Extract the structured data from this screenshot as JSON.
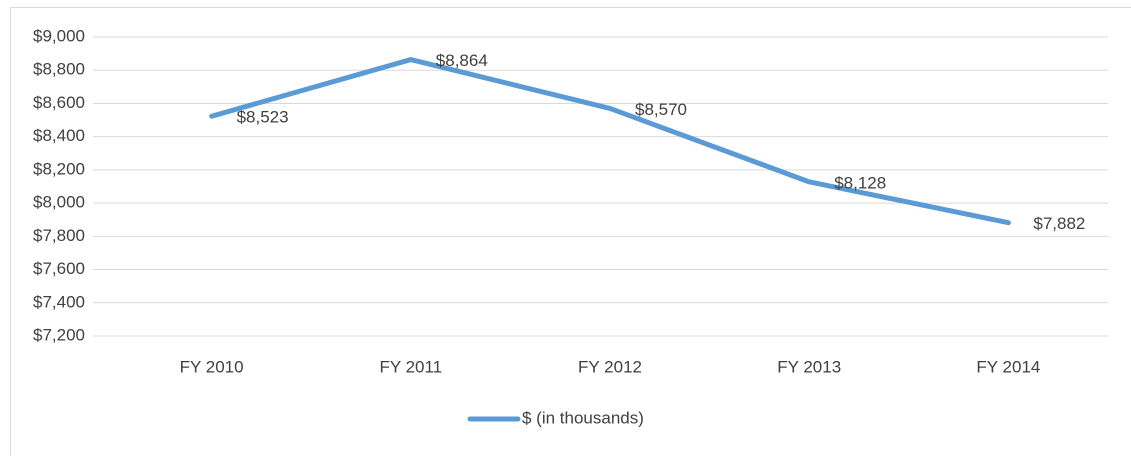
{
  "chart_data": {
    "type": "line",
    "categories": [
      "FY 2010",
      "FY 2011",
      "FY 2012",
      "FY 2013",
      "FY 2014"
    ],
    "series": [
      {
        "name": "$ (in thousands)",
        "color": "#5b9bd5",
        "values": [
          8523,
          8864,
          8570,
          8128,
          7882
        ],
        "value_labels": [
          "$8,523",
          "$8,864",
          "$8,570",
          "$8,128",
          "$7,882"
        ]
      }
    ],
    "ylim": [
      7200,
      9000
    ],
    "yticks": [
      {
        "value": 7200,
        "label": "$7,200"
      },
      {
        "value": 7400,
        "label": "$7,400"
      },
      {
        "value": 7600,
        "label": "$7,600"
      },
      {
        "value": 7800,
        "label": "$7,800"
      },
      {
        "value": 8000,
        "label": "$8,000"
      },
      {
        "value": 8200,
        "label": "$8,200"
      },
      {
        "value": 8400,
        "label": "$8,400"
      },
      {
        "value": 8600,
        "label": "$8,600"
      },
      {
        "value": 8800,
        "label": "$8,800"
      },
      {
        "value": 9000,
        "label": "$9,000"
      }
    ],
    "grid": true,
    "legend": "bottom"
  }
}
